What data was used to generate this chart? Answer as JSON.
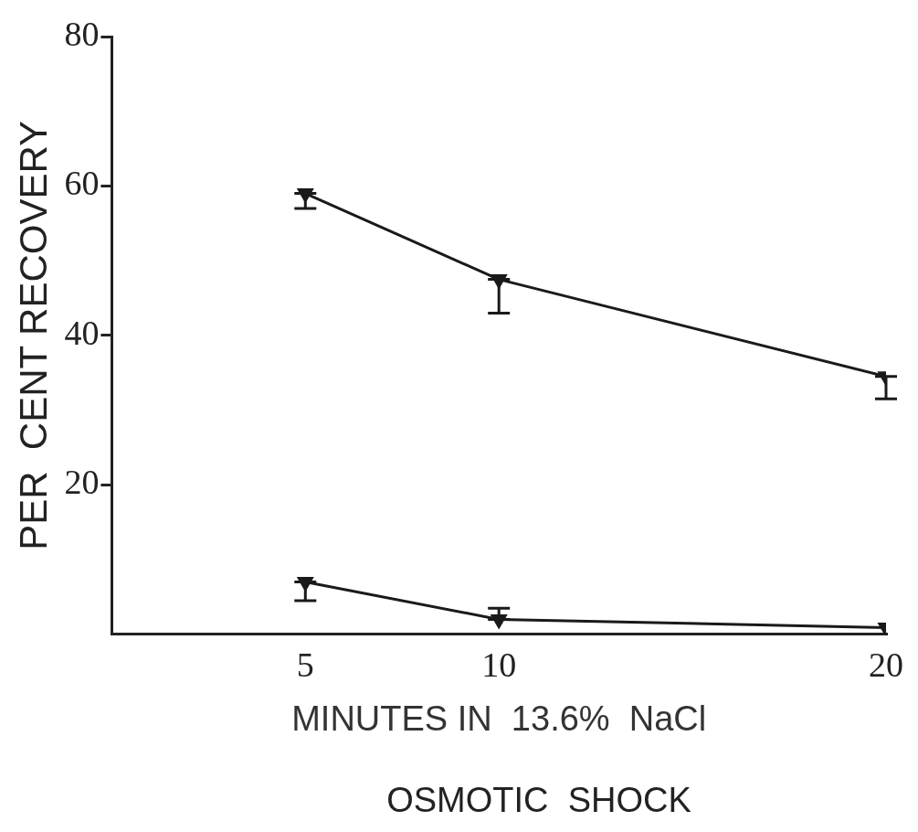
{
  "chart_data": {
    "type": "line",
    "xlabel": "MINUTES IN  13.6%  NaCl",
    "ylabel": "PER  CENT RECOVERY",
    "annotations": [
      "OSMOTIC  SHOCK"
    ],
    "x": [
      5,
      10,
      20
    ],
    "series": [
      {
        "color": "#1a1a1a",
        "values": [
          59,
          47.5,
          34.5
        ],
        "errors": [
          [
            57,
            59
          ],
          [
            43,
            47.5
          ],
          [
            31.5,
            34.5
          ]
        ]
      },
      {
        "color": "#1a1a1a",
        "values": [
          7,
          2,
          0.9
        ],
        "errors": [
          [
            4.5,
            7
          ],
          [
            2,
            3.5
          ],
          null
        ]
      }
    ],
    "xlim": [
      0,
      20
    ],
    "xticks": [
      5,
      10,
      20
    ],
    "ylim": [
      0,
      80
    ],
    "yticks": [
      20,
      40,
      60,
      80
    ],
    "grid": false,
    "legend": false,
    "marker": "triangle",
    "line_style": "solid"
  }
}
